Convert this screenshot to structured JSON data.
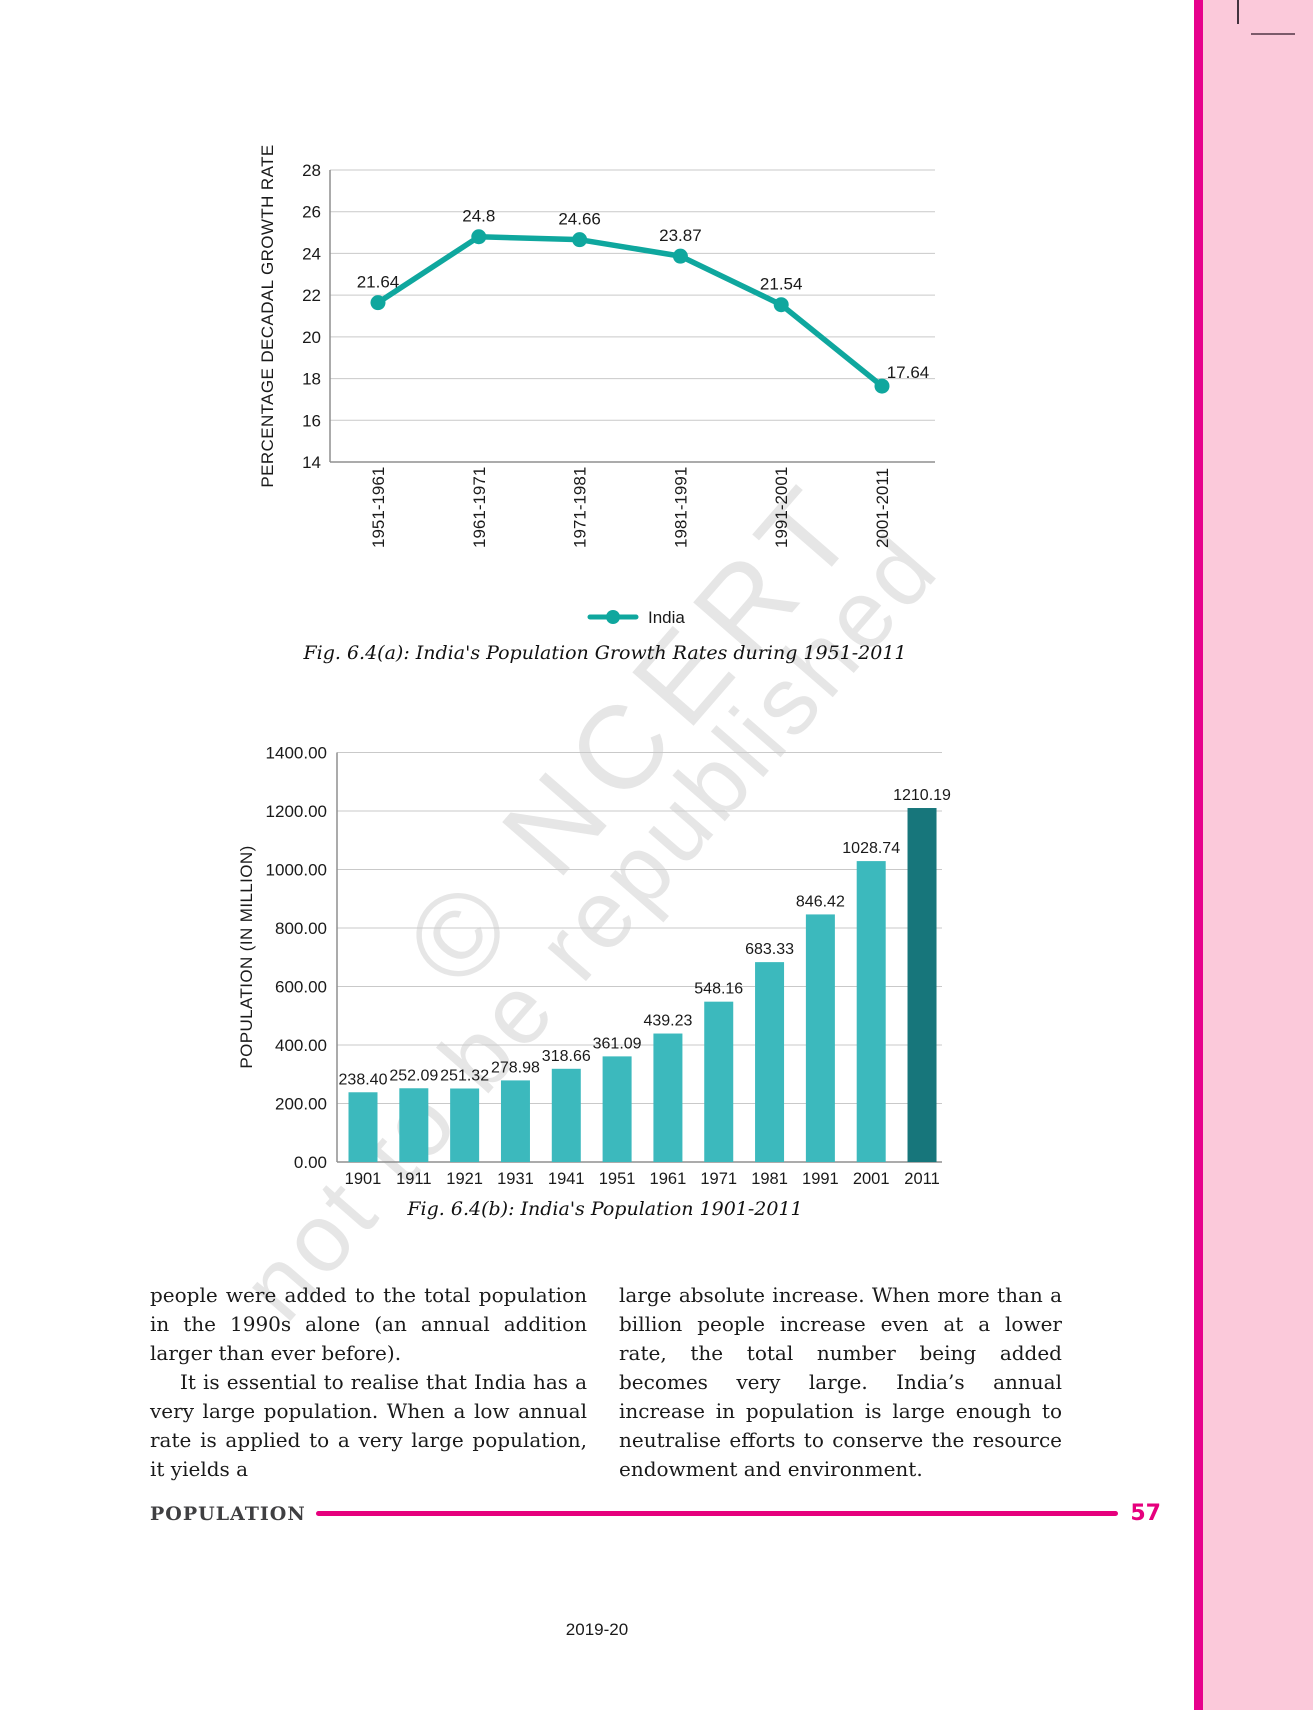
{
  "watermark": {
    "line1": "© NCERT",
    "line2": "not to be republished"
  },
  "chart_data": [
    {
      "type": "line",
      "caption": "Fig. 6.4(a): India's  Population Growth Rates during 1951-2011",
      "ylabel": "PERCENTAGE DECADAL GROWTH RATE",
      "categories": [
        "1951-1961",
        "1961-1971",
        "1971-1981",
        "1981-1991",
        "1991-2001",
        "2001-2011"
      ],
      "series": [
        {
          "name": "India",
          "values": [
            21.64,
            24.8,
            24.66,
            23.87,
            21.54,
            17.64
          ],
          "value_labels": [
            "21.64",
            "24.8",
            "24.66",
            "23.87",
            "21.54",
            "17.64"
          ]
        }
      ],
      "ylim": [
        14,
        28
      ],
      "ytick_step": 2,
      "grid": true,
      "legend_position": "bottom",
      "line_color": "#0fa79e"
    },
    {
      "type": "bar",
      "caption": "Fig. 6.4(b): India's Population 1901-2011",
      "ylabel": "POPULATION (IN MILLION)",
      "categories": [
        "1901",
        "1911",
        "1921",
        "1931",
        "1941",
        "1951",
        "1961",
        "1971",
        "1981",
        "1991",
        "2001",
        "2011"
      ],
      "values": [
        238.4,
        252.09,
        251.32,
        278.98,
        318.66,
        361.09,
        439.23,
        548.16,
        683.33,
        846.42,
        1028.74,
        1210.19
      ],
      "value_labels": [
        "238.40",
        "252.09",
        "251.32",
        "278.98",
        "318.66",
        "361.09",
        "439.23",
        "548.16",
        "683.33",
        "846.42",
        "1028.74",
        "1210.19"
      ],
      "ylim": [
        0,
        1400
      ],
      "ytick_step": 200,
      "grid": true,
      "bar_color": "#3cb9bd",
      "last_bar_color": "#17767b"
    }
  ],
  "body": {
    "left_column": [
      "people were added to the total population in the 1990s alone (an annual addition larger than ever before).",
      "It is essential to realise that India has a very large population. When a low annual rate is applied to a very large population, it yields a"
    ],
    "right_column": [
      "large absolute increase. When more than a billion people increase even at a lower rate, the total number  being added becomes very large. India’s annual increase in population is large enough to neutralise efforts to conserve the resource endowment and environment."
    ]
  },
  "footer": {
    "section": "POPULATION",
    "page_number": "57",
    "accent_color": "#e6007d"
  },
  "bottom_note": "2019-20"
}
